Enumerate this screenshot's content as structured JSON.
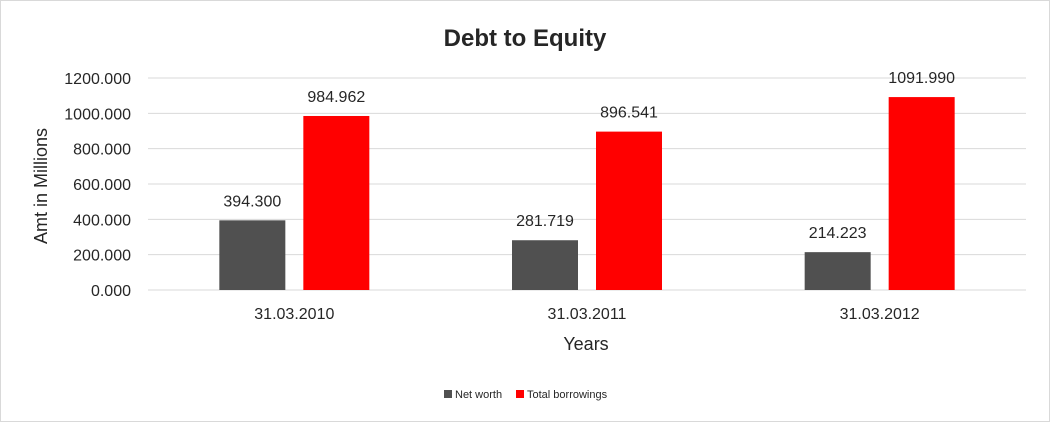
{
  "chart_data": {
    "type": "bar",
    "title": "Debt to Equity",
    "xlabel": "Years",
    "ylabel": "Amt in Millions",
    "categories": [
      "31.03.2010",
      "31.03.2011",
      "31.03.2012"
    ],
    "series": [
      {
        "name": "Net worth",
        "values": [
          394.3,
          281.719,
          214.223
        ],
        "labels": [
          "394.300",
          "281.719",
          "214.223"
        ],
        "color": "#505050"
      },
      {
        "name": "Total borrowings",
        "values": [
          984.962,
          896.541,
          1091.99
        ],
        "labels": [
          "984.962",
          "896.541",
          "1091.990"
        ],
        "color": "#ff0000"
      }
    ],
    "ylim": [
      0,
      1200
    ],
    "yticks": [
      "0.000",
      "200.000",
      "400.000",
      "600.000",
      "800.000",
      "1000.000",
      "1200.000"
    ],
    "grid": true,
    "legend": "bottom"
  }
}
